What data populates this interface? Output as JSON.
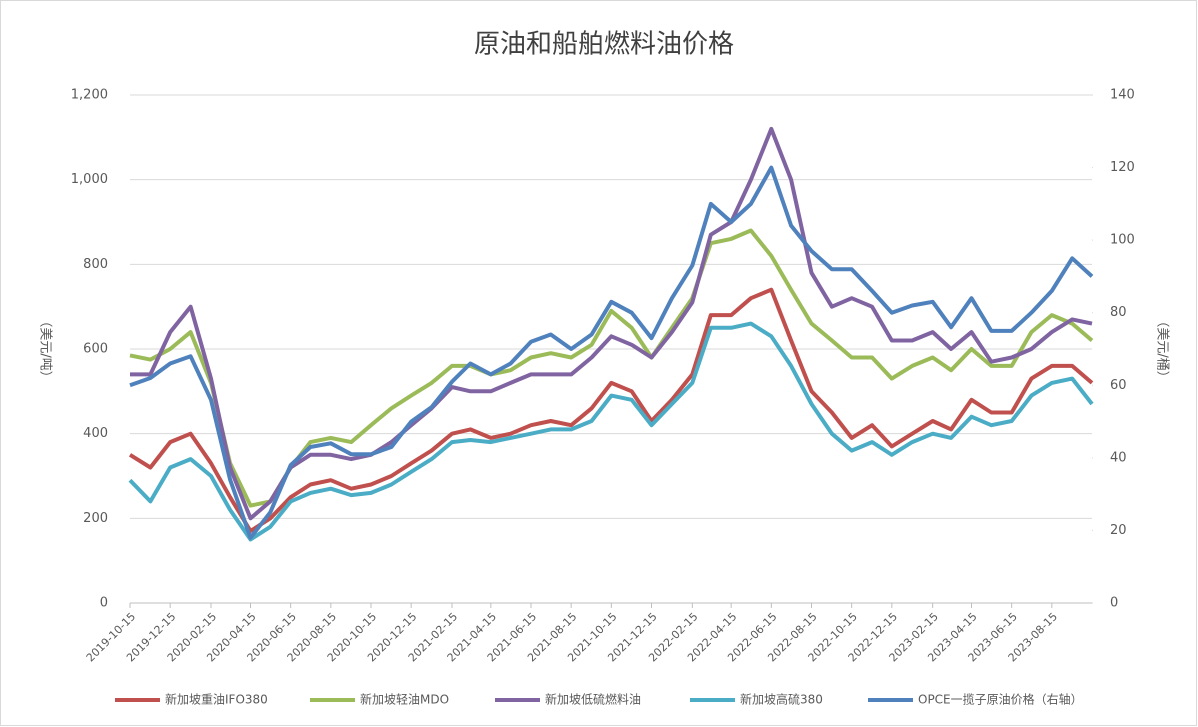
{
  "chart_data": {
    "type": "line",
    "title": "原油和船舶燃料油价格",
    "ylabel": "（美元/吨）",
    "y2label": "（美元/桶）",
    "xlim": [
      "2019-10-15",
      "2023-10-15"
    ],
    "xticks": [
      "2019-10-15",
      "2019-12-15",
      "2020-02-15",
      "2020-04-15",
      "2020-06-15",
      "2020-08-15",
      "2020-10-15",
      "2020-12-15",
      "2021-02-15",
      "2021-04-15",
      "2021-06-15",
      "2021-08-15",
      "2021-10-15",
      "2021-12-15",
      "2022-02-15",
      "2022-04-15",
      "2022-06-15",
      "2022-08-15",
      "2022-10-15",
      "2022-12-15",
      "2023-02-15",
      "2023-04-15",
      "2023-06-15",
      "2023-08-15"
    ],
    "ylim": [
      0,
      1200
    ],
    "yticks": [
      0,
      200,
      400,
      600,
      800,
      {
        "value": 1000,
        "label": "1,000"
      },
      {
        "value": 1200,
        "label": "1,200"
      }
    ],
    "y2lim": [
      0,
      140
    ],
    "y2ticks": [
      0,
      20,
      40,
      60,
      80,
      100,
      120,
      140
    ],
    "grid": true,
    "legend": "bottom",
    "x": [
      "2019-10-15",
      "2019-11-15",
      "2019-12-15",
      "2020-01-15",
      "2020-02-15",
      "2020-03-15",
      "2020-04-15",
      "2020-05-15",
      "2020-06-15",
      "2020-07-15",
      "2020-08-15",
      "2020-09-15",
      "2020-10-15",
      "2020-11-15",
      "2020-12-15",
      "2021-01-15",
      "2021-02-15",
      "2021-03-15",
      "2021-04-15",
      "2021-05-15",
      "2021-06-15",
      "2021-07-15",
      "2021-08-15",
      "2021-09-15",
      "2021-10-15",
      "2021-11-15",
      "2021-12-15",
      "2022-01-15",
      "2022-02-15",
      "2022-03-15",
      "2022-04-15",
      "2022-05-15",
      "2022-06-15",
      "2022-07-15",
      "2022-08-15",
      "2022-09-15",
      "2022-10-15",
      "2022-11-15",
      "2022-12-15",
      "2023-01-15",
      "2023-02-15",
      "2023-03-15",
      "2023-04-15",
      "2023-05-15",
      "2023-06-15",
      "2023-07-15",
      "2023-08-15",
      "2023-09-15",
      "2023-10-15"
    ],
    "series": [
      {
        "name": "新加坡重油IFO380",
        "color": "#c0504d",
        "values": [
          350,
          320,
          380,
          400,
          330,
          250,
          170,
          200,
          250,
          280,
          290,
          270,
          280,
          300,
          330,
          360,
          400,
          410,
          390,
          400,
          420,
          430,
          420,
          460,
          520,
          500,
          430,
          480,
          540,
          680,
          680,
          720,
          740,
          620,
          500,
          450,
          390,
          420,
          370,
          400,
          430,
          410,
          480,
          450,
          450,
          530,
          560,
          560,
          520
        ]
      },
      {
        "name": "新加坡轻油MDO",
        "color": "#9bbb59",
        "values": [
          585,
          575,
          600,
          640,
          520,
          330,
          230,
          240,
          320,
          380,
          390,
          380,
          420,
          460,
          490,
          520,
          560,
          560,
          540,
          550,
          580,
          590,
          580,
          610,
          690,
          650,
          580,
          650,
          720,
          850,
          860,
          880,
          820,
          740,
          660,
          620,
          580,
          580,
          530,
          560,
          580,
          550,
          600,
          560,
          560,
          640,
          680,
          660,
          620
        ]
      },
      {
        "name": "新加坡低硫燃料油",
        "color": "#8064a2",
        "values": [
          540,
          540,
          640,
          700,
          530,
          320,
          200,
          240,
          320,
          350,
          350,
          340,
          350,
          380,
          420,
          460,
          510,
          500,
          500,
          520,
          540,
          540,
          540,
          580,
          630,
          610,
          580,
          640,
          710,
          870,
          900,
          1000,
          1120,
          1000,
          780,
          700,
          720,
          700,
          620,
          620,
          640,
          600,
          640,
          570,
          580,
          600,
          640,
          670,
          660
        ]
      },
      {
        "name": "新加坡高硫380",
        "color": "#4bacc6",
        "values": [
          290,
          240,
          320,
          340,
          300,
          220,
          150,
          180,
          240,
          260,
          270,
          255,
          260,
          280,
          310,
          340,
          380,
          385,
          380,
          390,
          400,
          410,
          410,
          430,
          490,
          480,
          420,
          470,
          520,
          650,
          650,
          660,
          630,
          560,
          470,
          400,
          360,
          380,
          350,
          380,
          400,
          390,
          440,
          420,
          430,
          490,
          520,
          530,
          470
        ]
      },
      {
        "name": "OPCE一揽子原油价格（右轴）",
        "color": "#4f81bd",
        "axis": "y2",
        "values": [
          60,
          62,
          66,
          68,
          56,
          34,
          18,
          25,
          38,
          43,
          44,
          41,
          41,
          43,
          50,
          54,
          61,
          66,
          63,
          66,
          72,
          74,
          70,
          74,
          83,
          80,
          73,
          84,
          93,
          110,
          105,
          110,
          120,
          104,
          97,
          92,
          92,
          86,
          80,
          82,
          83,
          76,
          84,
          75,
          75,
          80,
          86,
          95,
          90
        ]
      }
    ]
  }
}
